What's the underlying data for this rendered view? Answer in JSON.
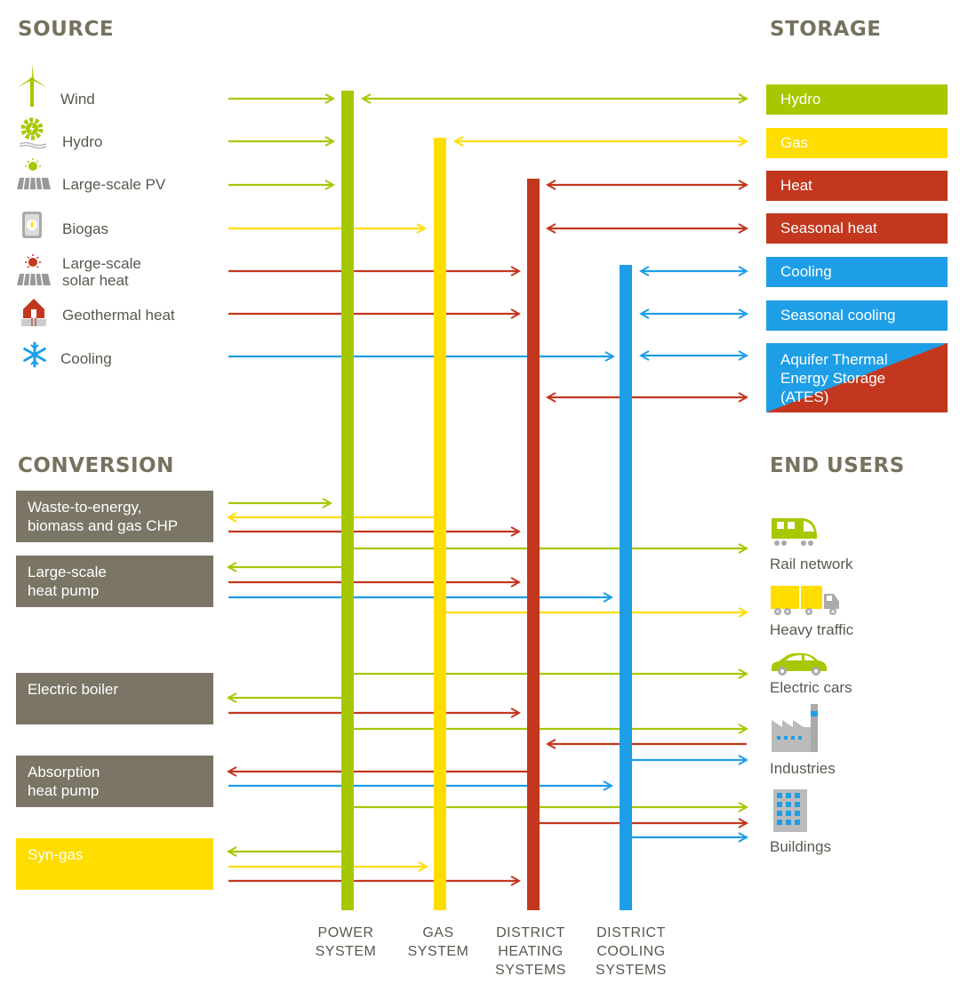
{
  "sections": {
    "source": "SOURCE",
    "storage": "STORAGE",
    "conversion": "CONVERSION",
    "end_users": "END USERS"
  },
  "sources": [
    {
      "label": "Wind",
      "icon": "wind-turbine-icon"
    },
    {
      "label": "Hydro",
      "icon": "hydro-gear-icon"
    },
    {
      "label": "Large-scale PV",
      "icon": "solar-panel-icon"
    },
    {
      "label": "Biogas",
      "icon": "biogas-icon"
    },
    {
      "label": "Large-scale\nsolar heat",
      "icon": "solar-heat-icon"
    },
    {
      "label": "Geothermal heat",
      "icon": "geothermal-icon"
    },
    {
      "label": "Cooling",
      "icon": "snowflake-icon"
    }
  ],
  "storage": [
    {
      "label": "Hydro",
      "color": "#a5c800"
    },
    {
      "label": "Gas",
      "color": "#ffdd00"
    },
    {
      "label": "Heat",
      "color": "#c3371e"
    },
    {
      "label": "Seasonal heat",
      "color": "#c3371e"
    },
    {
      "label": "Cooling",
      "color": "#1e9ee6"
    },
    {
      "label": "Seasonal cooling",
      "color": "#1e9ee6"
    },
    {
      "label": "Aquifer Thermal\nEnergy Storage\n(ATES)",
      "color": "#1e9ee6"
    }
  ],
  "conversion": [
    {
      "label": "Waste-to-energy,\nbiomass and gas CHP",
      "color": "#7a7565"
    },
    {
      "label": "Large-scale\nheat pump",
      "color": "#7a7565"
    },
    {
      "label": "Electric boiler",
      "color": "#7a7565"
    },
    {
      "label": "Absorption\nheat pump",
      "color": "#7a7565"
    },
    {
      "label": "Syn-gas",
      "color": "#ffdd00"
    }
  ],
  "end_users": [
    {
      "label": "Rail network",
      "icon": "train-icon"
    },
    {
      "label": "Heavy traffic",
      "icon": "truck-icon"
    },
    {
      "label": "Electric cars",
      "icon": "car-icon"
    },
    {
      "label": "Industries",
      "icon": "factory-icon"
    },
    {
      "label": "Buildings",
      "icon": "building-icon"
    }
  ],
  "systems": [
    {
      "label": "POWER\nSYSTEM",
      "color": "#a5c800"
    },
    {
      "label": "GAS\nSYSTEM",
      "color": "#ffdd00"
    },
    {
      "label": "DISTRICT\nHEATING\nSYSTEMS",
      "color": "#c3371e"
    },
    {
      "label": "DISTRICT\nCOOLING\nSYSTEMS",
      "color": "#1e9ee6"
    }
  ],
  "colors": {
    "power": "#a5c800",
    "gas": "#ffdd00",
    "heat": "#c3371e",
    "cooling": "#1e9ee6",
    "conversion_box": "#7a7565",
    "title": "#77725f",
    "text": "#59584f"
  }
}
